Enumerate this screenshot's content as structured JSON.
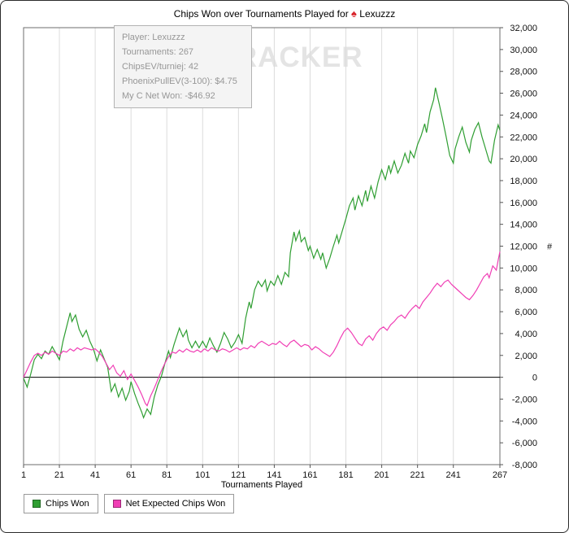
{
  "page": {
    "title_prefix": "Chips Won over Tournaments Played for",
    "suit_icon": "♠",
    "player": "Lexuzzz",
    "watermark": "POKERTRACKER"
  },
  "tooltip": {
    "lines": [
      "Player: Lexuzzz",
      "Tournaments: 267",
      "ChipsEV/turniej: 42",
      "PhoenixPullEV(3-100): $4.75",
      "My C Net Won: -$46.92"
    ]
  },
  "colors": {
    "chips_won": "#2f9e32",
    "net_expected": "#f03eb5",
    "grid": "#dcdcdc",
    "zero_line": "#000000",
    "plot_border": "#6e6e6e",
    "suit": "#d8232a"
  },
  "chart_data": {
    "type": "line",
    "title": "Chips Won over Tournaments Played for Lexuzzz",
    "xlabel": "Tournaments Played",
    "ylabel": "#",
    "xlim": [
      1,
      267
    ],
    "ylim": [
      -8000,
      32000
    ],
    "y_tick_step": 2000,
    "x_ticks": [
      1,
      21,
      41,
      61,
      81,
      101,
      121,
      141,
      161,
      181,
      201,
      221,
      241,
      267
    ],
    "grid": "vertical-only",
    "legend_position": "bottom-left",
    "series": [
      {
        "name": "Chips Won",
        "color": "#2f9e32",
        "points": [
          [
            1,
            -100
          ],
          [
            3,
            -900
          ],
          [
            5,
            300
          ],
          [
            7,
            1600
          ],
          [
            9,
            2100
          ],
          [
            11,
            1700
          ],
          [
            13,
            2400
          ],
          [
            15,
            2100
          ],
          [
            17,
            2800
          ],
          [
            19,
            2200
          ],
          [
            21,
            1600
          ],
          [
            23,
            3300
          ],
          [
            25,
            4600
          ],
          [
            27,
            5900
          ],
          [
            28,
            5100
          ],
          [
            30,
            5700
          ],
          [
            32,
            4400
          ],
          [
            34,
            3700
          ],
          [
            36,
            4300
          ],
          [
            38,
            3300
          ],
          [
            40,
            2600
          ],
          [
            42,
            1500
          ],
          [
            44,
            2500
          ],
          [
            46,
            1700
          ],
          [
            48,
            900
          ],
          [
            50,
            -1300
          ],
          [
            52,
            -600
          ],
          [
            54,
            -1800
          ],
          [
            56,
            -1000
          ],
          [
            58,
            -2100
          ],
          [
            60,
            -1300
          ],
          [
            61,
            -400
          ],
          [
            63,
            -1500
          ],
          [
            65,
            -2400
          ],
          [
            67,
            -3200
          ],
          [
            68,
            -3700
          ],
          [
            70,
            -2900
          ],
          [
            72,
            -3400
          ],
          [
            74,
            -1800
          ],
          [
            76,
            -700
          ],
          [
            78,
            100
          ],
          [
            80,
            1300
          ],
          [
            82,
            2400
          ],
          [
            83,
            1800
          ],
          [
            85,
            3000
          ],
          [
            87,
            4000
          ],
          [
            88,
            4500
          ],
          [
            90,
            3700
          ],
          [
            92,
            4300
          ],
          [
            93,
            3400
          ],
          [
            95,
            2700
          ],
          [
            97,
            3300
          ],
          [
            99,
            2700
          ],
          [
            101,
            3300
          ],
          [
            103,
            2700
          ],
          [
            105,
            3600
          ],
          [
            107,
            2900
          ],
          [
            109,
            2300
          ],
          [
            111,
            3100
          ],
          [
            113,
            4100
          ],
          [
            115,
            3500
          ],
          [
            117,
            2700
          ],
          [
            119,
            3200
          ],
          [
            121,
            3900
          ],
          [
            123,
            3100
          ],
          [
            125,
            5400
          ],
          [
            127,
            6900
          ],
          [
            128,
            6300
          ],
          [
            130,
            8000
          ],
          [
            132,
            8800
          ],
          [
            134,
            8300
          ],
          [
            136,
            8900
          ],
          [
            137,
            7900
          ],
          [
            139,
            8800
          ],
          [
            141,
            8400
          ],
          [
            143,
            9300
          ],
          [
            145,
            8500
          ],
          [
            147,
            9600
          ],
          [
            149,
            9200
          ],
          [
            150,
            11400
          ],
          [
            152,
            13300
          ],
          [
            153,
            12500
          ],
          [
            155,
            13400
          ],
          [
            156,
            12400
          ],
          [
            158,
            12800
          ],
          [
            160,
            11600
          ],
          [
            161,
            12000
          ],
          [
            163,
            10900
          ],
          [
            165,
            11700
          ],
          [
            167,
            10800
          ],
          [
            168,
            11400
          ],
          [
            170,
            10000
          ],
          [
            172,
            10900
          ],
          [
            174,
            12000
          ],
          [
            176,
            13000
          ],
          [
            177,
            12300
          ],
          [
            179,
            13400
          ],
          [
            181,
            14500
          ],
          [
            183,
            15700
          ],
          [
            185,
            16400
          ],
          [
            186,
            15300
          ],
          [
            188,
            16600
          ],
          [
            190,
            15700
          ],
          [
            192,
            17100
          ],
          [
            193,
            16100
          ],
          [
            195,
            17500
          ],
          [
            197,
            16400
          ],
          [
            199,
            17900
          ],
          [
            201,
            19000
          ],
          [
            203,
            18100
          ],
          [
            205,
            19400
          ],
          [
            206,
            18700
          ],
          [
            208,
            19800
          ],
          [
            210,
            18700
          ],
          [
            212,
            19400
          ],
          [
            214,
            20500
          ],
          [
            216,
            19600
          ],
          [
            217,
            20700
          ],
          [
            219,
            20100
          ],
          [
            221,
            21300
          ],
          [
            223,
            22100
          ],
          [
            225,
            23200
          ],
          [
            226,
            22400
          ],
          [
            228,
            24300
          ],
          [
            230,
            25400
          ],
          [
            231,
            26500
          ],
          [
            233,
            25100
          ],
          [
            235,
            23600
          ],
          [
            237,
            22000
          ],
          [
            239,
            20300
          ],
          [
            241,
            19600
          ],
          [
            242,
            20900
          ],
          [
            244,
            22000
          ],
          [
            246,
            22900
          ],
          [
            248,
            21500
          ],
          [
            250,
            20600
          ],
          [
            251,
            21700
          ],
          [
            253,
            22700
          ],
          [
            255,
            23300
          ],
          [
            257,
            22000
          ],
          [
            259,
            20900
          ],
          [
            261,
            19800
          ],
          [
            262,
            19600
          ],
          [
            264,
            21700
          ],
          [
            266,
            23100
          ],
          [
            267,
            22600
          ]
        ]
      },
      {
        "name": "Net Expected Chips Won",
        "color": "#f03eb5",
        "points": [
          [
            1,
            0
          ],
          [
            3,
            700
          ],
          [
            5,
            1400
          ],
          [
            7,
            2000
          ],
          [
            9,
            2200
          ],
          [
            11,
            2000
          ],
          [
            13,
            2300
          ],
          [
            15,
            2100
          ],
          [
            17,
            2400
          ],
          [
            19,
            2200
          ],
          [
            21,
            2000
          ],
          [
            23,
            2400
          ],
          [
            25,
            2300
          ],
          [
            27,
            2600
          ],
          [
            29,
            2400
          ],
          [
            31,
            2700
          ],
          [
            33,
            2500
          ],
          [
            35,
            2700
          ],
          [
            37,
            2600
          ],
          [
            39,
            2500
          ],
          [
            41,
            2600
          ],
          [
            43,
            2300
          ],
          [
            45,
            1900
          ],
          [
            47,
            1300
          ],
          [
            49,
            700
          ],
          [
            51,
            1100
          ],
          [
            53,
            400
          ],
          [
            55,
            100
          ],
          [
            57,
            600
          ],
          [
            59,
            -200
          ],
          [
            61,
            300
          ],
          [
            63,
            -300
          ],
          [
            65,
            -900
          ],
          [
            67,
            -1600
          ],
          [
            69,
            -2400
          ],
          [
            70,
            -2600
          ],
          [
            72,
            -1700
          ],
          [
            74,
            -1000
          ],
          [
            76,
            -200
          ],
          [
            78,
            600
          ],
          [
            80,
            1300
          ],
          [
            82,
            1900
          ],
          [
            84,
            2300
          ],
          [
            86,
            2200
          ],
          [
            88,
            2500
          ],
          [
            90,
            2300
          ],
          [
            92,
            2600
          ],
          [
            94,
            2400
          ],
          [
            96,
            2300
          ],
          [
            98,
            2500
          ],
          [
            100,
            2300
          ],
          [
            102,
            2600
          ],
          [
            104,
            2400
          ],
          [
            106,
            2700
          ],
          [
            108,
            2500
          ],
          [
            110,
            2400
          ],
          [
            112,
            2600
          ],
          [
            114,
            2500
          ],
          [
            116,
            2300
          ],
          [
            118,
            2500
          ],
          [
            120,
            2700
          ],
          [
            122,
            2500
          ],
          [
            124,
            2700
          ],
          [
            126,
            2600
          ],
          [
            128,
            2900
          ],
          [
            130,
            2700
          ],
          [
            132,
            3100
          ],
          [
            134,
            3300
          ],
          [
            136,
            3100
          ],
          [
            138,
            2900
          ],
          [
            140,
            3100
          ],
          [
            142,
            3000
          ],
          [
            144,
            3300
          ],
          [
            146,
            3000
          ],
          [
            148,
            2800
          ],
          [
            150,
            3200
          ],
          [
            152,
            3400
          ],
          [
            154,
            3100
          ],
          [
            156,
            2800
          ],
          [
            158,
            3000
          ],
          [
            160,
            2900
          ],
          [
            162,
            2500
          ],
          [
            164,
            2800
          ],
          [
            166,
            2600
          ],
          [
            168,
            2300
          ],
          [
            170,
            2100
          ],
          [
            172,
            1900
          ],
          [
            174,
            2300
          ],
          [
            176,
            2900
          ],
          [
            178,
            3600
          ],
          [
            180,
            4200
          ],
          [
            182,
            4500
          ],
          [
            184,
            4100
          ],
          [
            186,
            3600
          ],
          [
            188,
            3100
          ],
          [
            190,
            2900
          ],
          [
            192,
            3500
          ],
          [
            194,
            3800
          ],
          [
            196,
            3400
          ],
          [
            198,
            4000
          ],
          [
            200,
            4400
          ],
          [
            202,
            4600
          ],
          [
            204,
            4300
          ],
          [
            206,
            4800
          ],
          [
            208,
            5100
          ],
          [
            210,
            5500
          ],
          [
            212,
            5700
          ],
          [
            214,
            5400
          ],
          [
            216,
            5900
          ],
          [
            218,
            6300
          ],
          [
            220,
            6600
          ],
          [
            222,
            6300
          ],
          [
            224,
            6900
          ],
          [
            226,
            7300
          ],
          [
            228,
            7700
          ],
          [
            230,
            8200
          ],
          [
            232,
            8600
          ],
          [
            234,
            8300
          ],
          [
            236,
            8700
          ],
          [
            238,
            8900
          ],
          [
            240,
            8500
          ],
          [
            242,
            8200
          ],
          [
            244,
            7900
          ],
          [
            246,
            7600
          ],
          [
            248,
            7300
          ],
          [
            250,
            7100
          ],
          [
            252,
            7500
          ],
          [
            254,
            8000
          ],
          [
            256,
            8600
          ],
          [
            258,
            9200
          ],
          [
            260,
            9500
          ],
          [
            261,
            9100
          ],
          [
            263,
            10200
          ],
          [
            265,
            9800
          ],
          [
            266,
            10700
          ],
          [
            267,
            11500
          ]
        ]
      }
    ]
  }
}
